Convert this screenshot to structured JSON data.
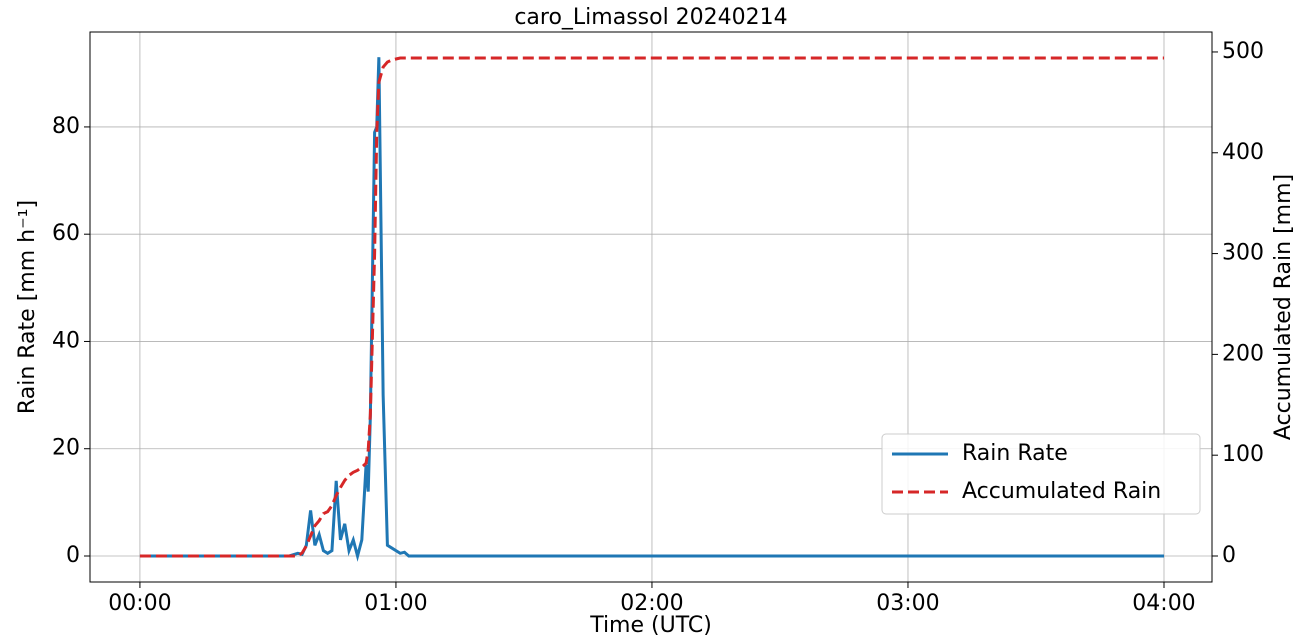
{
  "chart_data": {
    "type": "line",
    "title": "caro_Limassol 20240214",
    "xlabel": "Time (UTC)",
    "ylabel": "Rain Rate [mm h⁻¹]",
    "y2label": "Accumulated Rain [mm]",
    "x": [
      0,
      35,
      37,
      38,
      39,
      40,
      41,
      42,
      43,
      44,
      45,
      46,
      47,
      48,
      49,
      50,
      51,
      52,
      53,
      53.5,
      54,
      55,
      55.5,
      56,
      57,
      58,
      59,
      60,
      61,
      62,
      63,
      240
    ],
    "series": [
      {
        "name": "Rain Rate",
        "color": "#1f77b4",
        "style": "solid",
        "values": [
          0,
          0,
          0.5,
          0.3,
          2,
          8.5,
          2,
          4,
          1,
          0.5,
          1,
          14,
          3,
          6,
          1,
          3,
          0,
          3,
          17,
          12,
          26,
          79,
          80,
          93,
          30,
          2,
          1.5,
          1,
          0.5,
          0.7,
          0,
          0
        ]
      },
      {
        "name": "Accumulated Rain",
        "color": "#d62728",
        "style": "dashed",
        "axis": "y2",
        "values": [
          0,
          0,
          0,
          3,
          10,
          20,
          30,
          35,
          42,
          44,
          50,
          60,
          68,
          75,
          80,
          83,
          85,
          88,
          92,
          105,
          140,
          300,
          420,
          470,
          485,
          490,
          492,
          493,
          494,
          494,
          494,
          494
        ]
      }
    ],
    "xlim": [
      -11.7,
      251.25
    ],
    "xticks": [
      {
        "value": 0,
        "label": "00:00"
      },
      {
        "value": 60,
        "label": "01:00"
      },
      {
        "value": 120,
        "label": "02:00"
      },
      {
        "value": 180,
        "label": "03:00"
      },
      {
        "value": 240,
        "label": "04:00"
      }
    ],
    "ylim": [
      -4.85,
      97.7
    ],
    "yticks": [
      0,
      20,
      40,
      60,
      80
    ],
    "y2lim": [
      -25.8,
      519.8
    ],
    "y2ticks": [
      0,
      100,
      200,
      300,
      400,
      500
    ],
    "grid": true,
    "legend": "lower right"
  }
}
